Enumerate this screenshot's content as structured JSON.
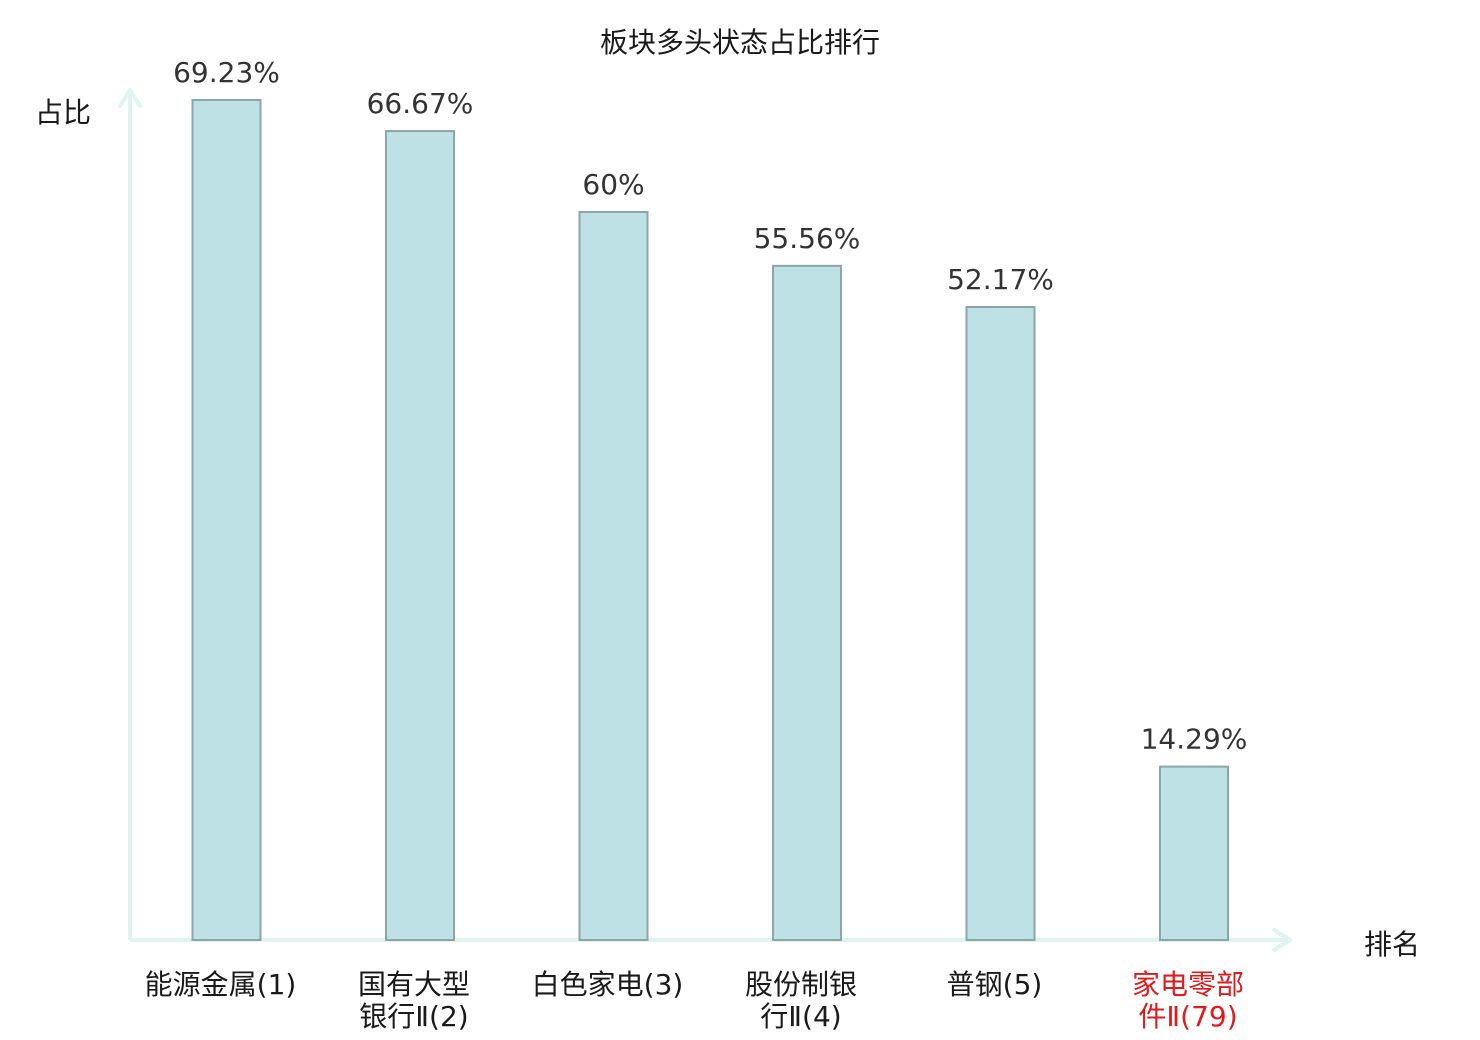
{
  "chart_data": {
    "type": "bar",
    "title": "板块多头状态占比排行",
    "ylabel": "占比",
    "xlabel": "排名",
    "ylim": [
      0,
      100
    ],
    "grid": false,
    "legend": "none",
    "categories": [
      {
        "lines": [
          "能源金属(1)"
        ],
        "highlight": false
      },
      {
        "lines": [
          "国有大型",
          "银行Ⅱ(2)"
        ],
        "highlight": false
      },
      {
        "lines": [
          "白色家电(3)"
        ],
        "highlight": false
      },
      {
        "lines": [
          "股份制银",
          "行Ⅱ(4)"
        ],
        "highlight": false
      },
      {
        "lines": [
          "普钢(5)"
        ],
        "highlight": false
      },
      {
        "lines": [
          "家电零部",
          "件Ⅱ(79)"
        ],
        "highlight": true
      }
    ],
    "values": [
      69.23,
      66.67,
      60,
      55.56,
      52.17,
      14.29
    ],
    "value_labels": [
      "69.23%",
      "66.67%",
      "60%",
      "55.56%",
      "52.17%",
      "14.29%"
    ],
    "colors": {
      "bar_fill": "#bde1e4",
      "bar_stroke": "#8aa6a8",
      "axis": "#dff3f0",
      "text": "#1a1a1a",
      "highlight_text": "#e31a1c"
    }
  }
}
